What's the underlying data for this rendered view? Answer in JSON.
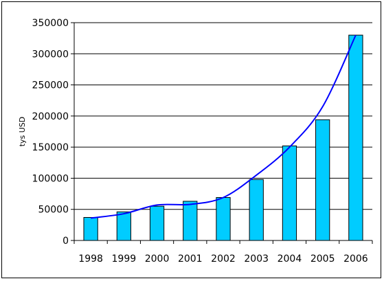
{
  "chart_data": {
    "type": "bar",
    "categories": [
      "1998",
      "1999",
      "2000",
      "2001",
      "2002",
      "2003",
      "2004",
      "2005",
      "2006"
    ],
    "values": [
      37000,
      46000,
      55000,
      63000,
      69000,
      98000,
      152000,
      194000,
      330000
    ],
    "trendline": {
      "type": "smoothed line",
      "values": [
        36000,
        43000,
        57000,
        58000,
        69000,
        105000,
        150000,
        215000,
        330000
      ]
    },
    "title": "",
    "xlabel": "",
    "ylabel": "tys USD",
    "ylim": [
      0,
      350000
    ],
    "yticks": [
      0,
      50000,
      100000,
      150000,
      200000,
      250000,
      300000,
      350000
    ],
    "grid": "horizontal",
    "legend": "none",
    "colors": {
      "bar_fill": "#00ccff",
      "bar_stroke": "#000000",
      "trendline": "#0000ff",
      "grid": "#000000"
    }
  }
}
